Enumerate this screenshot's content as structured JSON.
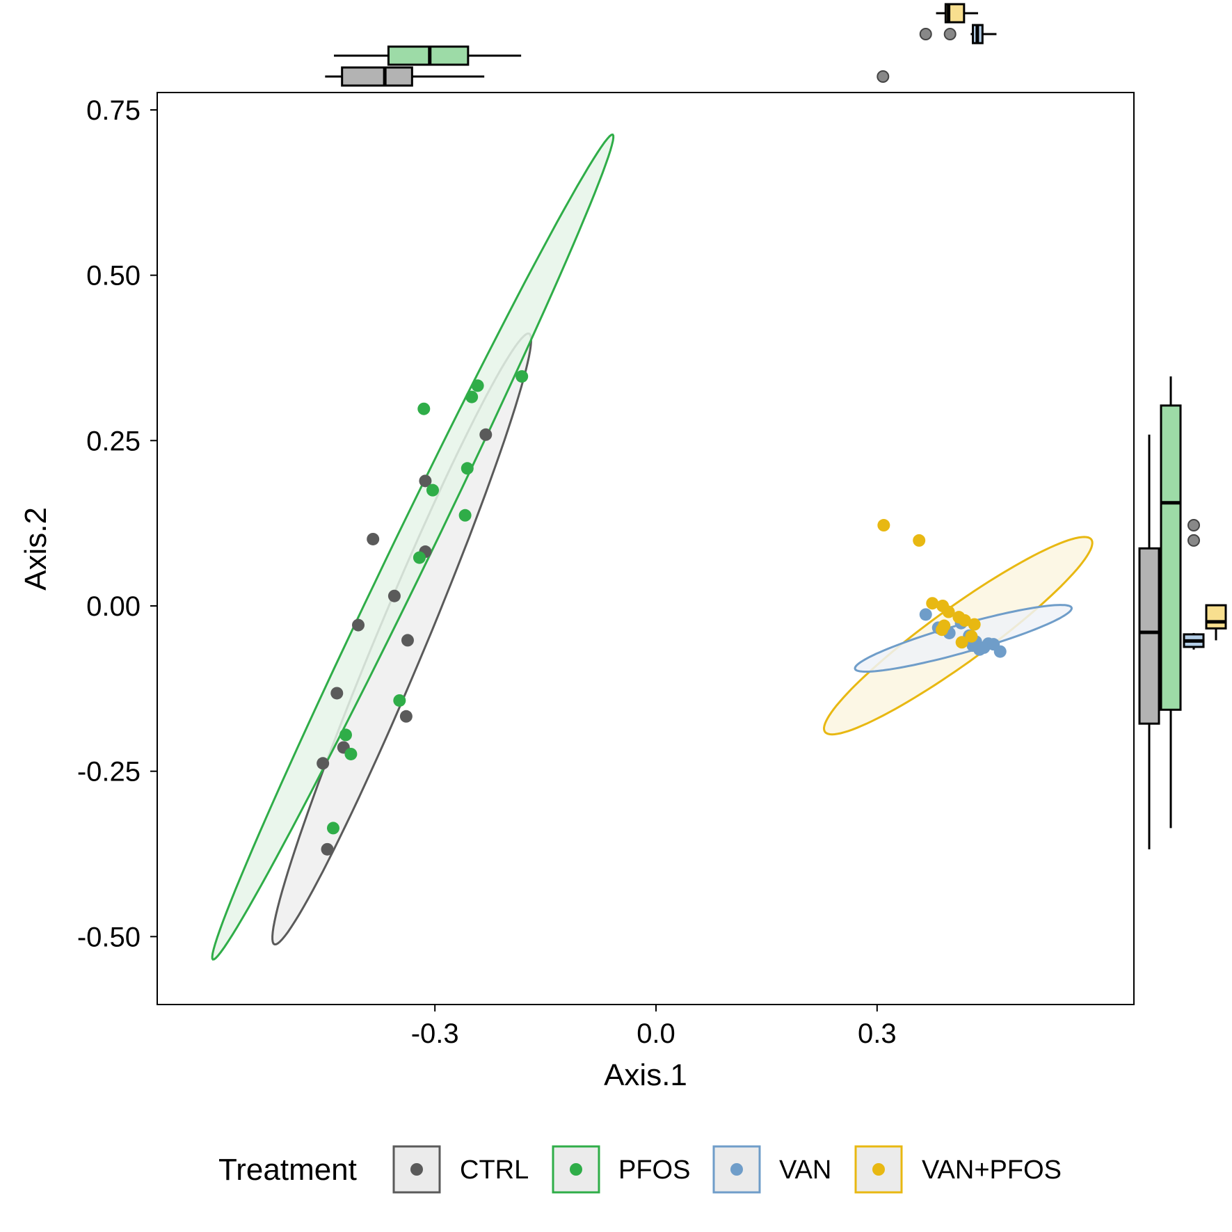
{
  "chart_data": {
    "type": "scatter",
    "title": "",
    "xlabel": "Axis.1",
    "ylabel": "Axis.2",
    "xlim": [
      -0.59,
      0.565
    ],
    "ylim": [
      -0.6,
      0.78
    ],
    "x_ticks": [
      -0.3,
      0.0,
      0.3
    ],
    "x_tick_labels": [
      "-0.3",
      "0.0",
      "0.3"
    ],
    "y_ticks": [
      0.75,
      0.5,
      0.25,
      0.0,
      -0.25,
      -0.5
    ],
    "y_tick_labels": [
      "0.75",
      "0.50",
      "0.25",
      "0.00",
      "-0.25",
      "-0.50"
    ],
    "grid": false,
    "legend": {
      "title": "Treatment",
      "position": "bottom",
      "entries": [
        "CTRL",
        "PFOS",
        "VAN",
        "VAN+PFOS"
      ]
    },
    "marginal_boxplots": {
      "top": "Axis.1 distribution per group",
      "right": "Axis.2 distribution per group"
    },
    "series": [
      {
        "name": "CTRL",
        "color": "#5a5a5a",
        "box_fill": "#b3b3b3",
        "ellipse_fill": "#eeeeee",
        "ellipse": {
          "cx": -0.345,
          "cy": -0.05,
          "rx": 0.493,
          "ry": 0.034,
          "angle_deg": 69.5
        },
        "points": [
          [
            -0.231,
            0.259
          ],
          [
            -0.313,
            0.189
          ],
          [
            -0.384,
            0.101
          ],
          [
            -0.313,
            0.082
          ],
          [
            -0.355,
            0.015
          ],
          [
            -0.404,
            -0.029
          ],
          [
            -0.337,
            -0.052
          ],
          [
            -0.433,
            -0.132
          ],
          [
            -0.339,
            -0.167
          ],
          [
            -0.424,
            -0.214
          ],
          [
            -0.452,
            -0.238
          ],
          [
            -0.446,
            -0.368
          ]
        ],
        "box_x": {
          "min": -0.449,
          "q1": -0.426,
          "median": -0.368,
          "q3": -0.331,
          "max": -0.233
        },
        "box_y": {
          "min": -0.368,
          "q1": -0.178,
          "median": -0.04,
          "q3": 0.087,
          "max": 0.259
        }
      },
      {
        "name": "PFOS",
        "color": "#2fad48",
        "box_fill": "#9ddba7",
        "ellipse_fill": "#e6f4e9",
        "ellipse": {
          "cx": -0.33,
          "cy": 0.089,
          "rx": 0.68,
          "ry": 0.026,
          "angle_deg": 66.5
        },
        "points": [
          [
            -0.182,
            0.347
          ],
          [
            -0.242,
            0.333
          ],
          [
            -0.25,
            0.316
          ],
          [
            -0.315,
            0.298
          ],
          [
            -0.256,
            0.208
          ],
          [
            -0.303,
            0.175
          ],
          [
            -0.259,
            0.137
          ],
          [
            -0.321,
            0.073
          ],
          [
            -0.348,
            -0.143
          ],
          [
            -0.421,
            -0.195
          ],
          [
            -0.414,
            -0.224
          ],
          [
            -0.438,
            -0.336
          ]
        ],
        "box_x": {
          "min": -0.437,
          "q1": -0.363,
          "median": -0.307,
          "q3": -0.255,
          "max": -0.183
        },
        "box_y": {
          "min": -0.336,
          "q1": -0.157,
          "median": 0.156,
          "q3": 0.303,
          "max": 0.347
        }
      },
      {
        "name": "VAN",
        "color": "#6f9dc9",
        "box_fill": "#b5cfe8",
        "ellipse_fill": "#eef2f8",
        "ellipse": {
          "cx": 0.417,
          "cy": -0.049,
          "rx": 0.154,
          "ry": 0.021,
          "angle_deg": 17.5
        },
        "points": [
          [
            0.366,
            -0.013
          ],
          [
            0.383,
            -0.033
          ],
          [
            0.398,
            -0.041
          ],
          [
            0.414,
            -0.026
          ],
          [
            0.425,
            -0.045
          ],
          [
            0.43,
            -0.06
          ],
          [
            0.434,
            -0.054
          ],
          [
            0.439,
            -0.066
          ],
          [
            0.445,
            -0.063
          ],
          [
            0.451,
            -0.057
          ],
          [
            0.458,
            -0.058
          ],
          [
            0.467,
            -0.069
          ]
        ],
        "box_x": {
          "min": 0.427,
          "q1": 0.43,
          "median": 0.436,
          "q3": 0.443,
          "max": 0.462
        },
        "box_y": {
          "min": -0.066,
          "q1": -0.062,
          "median": -0.053,
          "q3": -0.043,
          "max": -0.041
        }
      },
      {
        "name": "VAN+PFOS",
        "color": "#e8b812",
        "box_fill": "#f8df8f",
        "ellipse_fill": "#fcf6e0",
        "ellipse": {
          "cx": 0.41,
          "cy": -0.045,
          "rx": 0.232,
          "ry": 0.04,
          "angle_deg": 39
        },
        "points": [
          [
            0.309,
            0.122
          ],
          [
            0.357,
            0.099
          ],
          [
            0.375,
            0.004
          ],
          [
            0.389,
            0.0
          ],
          [
            0.397,
            -0.009
          ],
          [
            0.411,
            -0.017
          ],
          [
            0.419,
            -0.022
          ],
          [
            0.432,
            -0.028
          ],
          [
            0.391,
            -0.03
          ],
          [
            0.388,
            -0.036
          ],
          [
            0.428,
            -0.046
          ],
          [
            0.415,
            -0.055
          ]
        ],
        "box_x": {
          "min": 0.38,
          "q1": 0.393,
          "median": 0.397,
          "q3": 0.418,
          "max": 0.437
        },
        "box_y": {
          "min": -0.052,
          "q1": -0.034,
          "median": -0.024,
          "q3": 0.001,
          "max": 0.001
        }
      }
    ]
  },
  "outliers": {
    "top": [
      {
        "x": 0.308,
        "group": "CTRL"
      },
      {
        "x": 0.366,
        "group": "VAN"
      },
      {
        "x": 0.399,
        "group": "VAN"
      }
    ],
    "right": [
      {
        "y": 0.122,
        "group": "VAN"
      },
      {
        "y": 0.099,
        "group": "VAN"
      }
    ]
  }
}
